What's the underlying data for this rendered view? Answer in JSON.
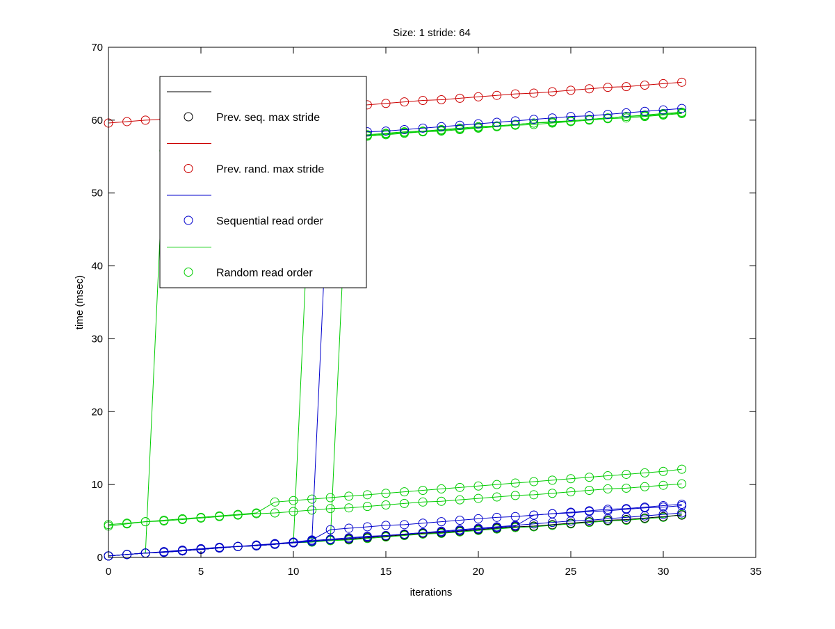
{
  "chart_data": {
    "type": "line",
    "title": "Size: 1 stride: 64",
    "xlabel": "iterations",
    "ylabel": "time (msec)",
    "xlim": [
      0,
      35
    ],
    "ylim": [
      0,
      70
    ],
    "xticks": [
      0,
      5,
      10,
      15,
      20,
      25,
      30,
      35
    ],
    "yticks": [
      0,
      10,
      20,
      30,
      40,
      50,
      60,
      70
    ],
    "grid": false,
    "legend_position": "top-left",
    "x": [
      0,
      1,
      2,
      3,
      4,
      5,
      6,
      7,
      8,
      9,
      10,
      11,
      12,
      13,
      14,
      15,
      16,
      17,
      18,
      19,
      20,
      21,
      22,
      23,
      24,
      25,
      26,
      27,
      28,
      29,
      30,
      31
    ],
    "legend": [
      {
        "label": "Prev. seq. max stride",
        "color": "#000000"
      },
      {
        "label": "Prev. rand. max stride",
        "color": "#cc0000"
      },
      {
        "label": "Sequential read order",
        "color": "#0000cc"
      },
      {
        "label": "Random read order",
        "color": "#00cc00"
      }
    ],
    "series": [
      {
        "name": "Prev. rand. max stride",
        "color": "#cc0000",
        "values": [
          59.6,
          59.8,
          60.0,
          60.1,
          60.3,
          60.5,
          60.7,
          60.9,
          61.0,
          61.2,
          61.4,
          61.6,
          61.8,
          61.9,
          62.1,
          62.3,
          62.5,
          62.7,
          62.8,
          63.0,
          63.2,
          63.4,
          63.6,
          63.7,
          63.9,
          64.1,
          64.3,
          64.5,
          64.6,
          64.8,
          65.0,
          65.2
        ]
      },
      {
        "name": "Random read order",
        "color": "#00cc00",
        "values": [
          4.3,
          4.6,
          4.9,
          5.1,
          5.3,
          5.5,
          5.7,
          5.9,
          6.1,
          7.6,
          7.8,
          8.0,
          8.2,
          8.4,
          8.6,
          8.8,
          9.0,
          9.2,
          9.4,
          9.6,
          9.8,
          10.0,
          10.2,
          10.4,
          10.6,
          10.8,
          11.0,
          11.2,
          11.4,
          11.6,
          11.8,
          12.1
        ]
      },
      {
        "name": "Random read order",
        "color": "#00cc00",
        "values": [
          4.5,
          4.7,
          4.9,
          5.0,
          5.2,
          5.4,
          5.6,
          5.8,
          6.0,
          6.1,
          6.3,
          6.5,
          6.7,
          6.8,
          7.0,
          7.2,
          7.4,
          7.6,
          7.7,
          7.9,
          8.1,
          8.3,
          8.5,
          8.6,
          8.8,
          9.0,
          9.2,
          9.4,
          9.5,
          9.7,
          9.9,
          10.1
        ]
      },
      {
        "name": "Random read order",
        "color": "#00cc00",
        "values": [
          0.2,
          0.4,
          0.6,
          55.8,
          56.0,
          56.2,
          56.4,
          56.6,
          56.7,
          56.9,
          57.1,
          57.3,
          57.5,
          57.6,
          57.8,
          58.0,
          58.2,
          58.4,
          58.5,
          58.7,
          58.9,
          59.1,
          59.3,
          59.4,
          59.6,
          59.8,
          60.0,
          60.2,
          60.3,
          60.5,
          60.7,
          60.9
        ]
      },
      {
        "name": "Random read order",
        "color": "#00cc00",
        "values": [
          0.2,
          0.4,
          0.6,
          0.7,
          0.9,
          1.1,
          1.3,
          1.5,
          1.6,
          1.8,
          2.0,
          57.5,
          57.7,
          57.8,
          58.0,
          58.2,
          58.4,
          58.5,
          58.7,
          58.9,
          59.1,
          59.2,
          59.4,
          59.6,
          59.8,
          59.9,
          60.1,
          60.3,
          60.5,
          60.6,
          60.8,
          61.0
        ]
      },
      {
        "name": "Random read order",
        "color": "#00cc00",
        "values": [
          0.2,
          0.4,
          0.6,
          0.7,
          0.9,
          1.1,
          1.3,
          1.5,
          1.6,
          1.8,
          2.0,
          2.2,
          2.4,
          57.7,
          57.9,
          58.1,
          58.3,
          58.4,
          58.6,
          58.8,
          59.0,
          59.2,
          59.4,
          59.6,
          59.7,
          59.9,
          60.1,
          60.3,
          60.5,
          60.7,
          60.9,
          61.1
        ]
      },
      {
        "name": "Random read order",
        "color": "#00cc00",
        "values": [
          0.2,
          0.4,
          0.6,
          0.7,
          0.9,
          1.1,
          1.3,
          1.5,
          1.6,
          1.8,
          2.0,
          2.1,
          2.3,
          2.4,
          2.6,
          2.8,
          3.0,
          3.2,
          3.3,
          3.5,
          3.7,
          3.9,
          4.1,
          4.2,
          4.4,
          4.6,
          4.8,
          5.0,
          5.1,
          5.3,
          5.5,
          5.9
        ]
      },
      {
        "name": "Prev. seq. max stride",
        "color": "#000000",
        "values": [
          0.2,
          0.4,
          0.6,
          0.7,
          0.9,
          1.1,
          1.3,
          1.5,
          1.6,
          1.8,
          2.0,
          2.2,
          2.4,
          2.5,
          2.7,
          2.9,
          3.1,
          3.3,
          3.4,
          3.6,
          3.8,
          4.0,
          4.2,
          4.3,
          4.5,
          4.7,
          4.9,
          5.1,
          5.2,
          5.4,
          5.6,
          5.8
        ]
      },
      {
        "name": "Sequential read order",
        "color": "#0000cc",
        "values": [
          0.2,
          0.4,
          0.6,
          0.7,
          0.9,
          1.1,
          1.3,
          1.5,
          1.6,
          1.8,
          2.0,
          2.2,
          58.0,
          58.2,
          58.4,
          58.5,
          58.7,
          58.9,
          59.1,
          59.3,
          59.5,
          59.7,
          59.9,
          60.1,
          60.3,
          60.5,
          60.6,
          60.8,
          61.0,
          61.2,
          61.4,
          61.6
        ]
      },
      {
        "name": "Sequential read order",
        "color": "#0000cc",
        "values": [
          0.2,
          0.4,
          0.6,
          0.7,
          0.9,
          1.1,
          1.3,
          1.5,
          1.6,
          1.8,
          2.1,
          2.4,
          3.8,
          4.0,
          4.2,
          4.4,
          4.5,
          4.7,
          4.9,
          5.1,
          5.3,
          5.5,
          5.6,
          5.8,
          6.0,
          6.2,
          6.4,
          6.6,
          6.7,
          6.9,
          7.1,
          7.3
        ]
      },
      {
        "name": "Sequential read order",
        "color": "#0000cc",
        "values": [
          0.2,
          0.4,
          0.6,
          0.7,
          0.9,
          1.1,
          1.3,
          1.5,
          1.6,
          1.8,
          2.0,
          2.2,
          2.4,
          2.6,
          2.8,
          3.0,
          3.2,
          3.4,
          3.5,
          3.7,
          3.9,
          4.1,
          4.3,
          5.8,
          6.0,
          6.1,
          6.3,
          6.4,
          6.6,
          6.8,
          6.9,
          7.1
        ]
      },
      {
        "name": "Sequential read order",
        "color": "#0000cc",
        "values": [
          0.2,
          0.4,
          0.6,
          0.8,
          1.0,
          1.2,
          1.4,
          1.5,
          1.7,
          1.9,
          2.1,
          2.3,
          2.5,
          2.7,
          2.9,
          3.0,
          3.2,
          3.4,
          3.6,
          3.8,
          4.0,
          4.2,
          4.4,
          4.6,
          4.8,
          5.0,
          5.1,
          5.3,
          5.5,
          5.7,
          5.9,
          6.1
        ]
      }
    ]
  }
}
